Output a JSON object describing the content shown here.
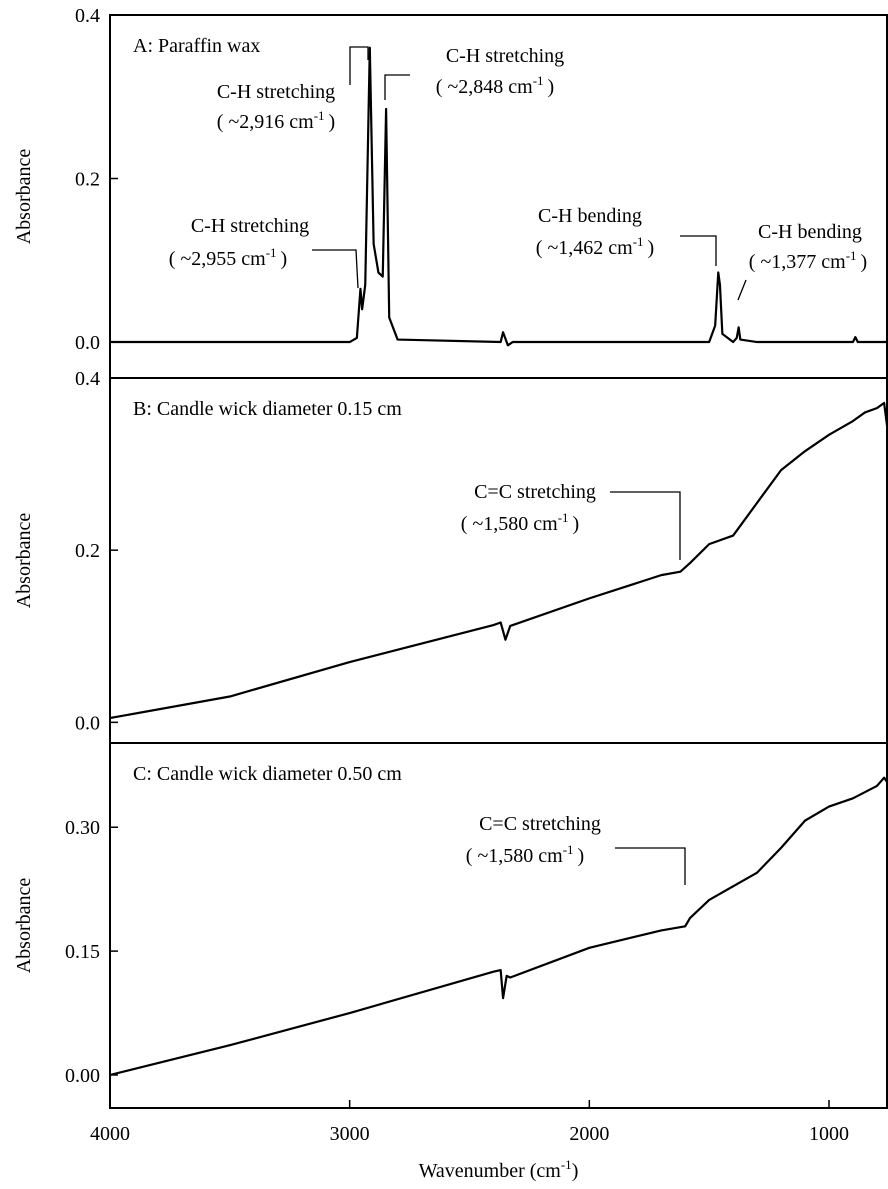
{
  "chart_data": [
    {
      "type": "line",
      "title": "A: Paraffin wax",
      "ylabel": "Absorbance",
      "color": "#000000",
      "xlim": [
        4000,
        758
      ],
      "ylim": [
        -0.044,
        0.4
      ],
      "yticks": [
        {
          "value": 0,
          "label": "0.0"
        },
        0.2,
        0.4
      ],
      "x": [
        4000,
        3000,
        2970,
        2955,
        2948,
        2935,
        2916,
        2900,
        2880,
        2862,
        2848,
        2835,
        2800,
        2370,
        2360,
        2340,
        2320,
        1500,
        1475,
        1462,
        1455,
        1445,
        1400,
        1385,
        1377,
        1370,
        1300,
        900,
        890,
        880,
        758
      ],
      "values": [
        0,
        0,
        0.005,
        0.065,
        0.04,
        0.07,
        0.36,
        0.12,
        0.085,
        0.08,
        0.285,
        0.03,
        0.003,
        0,
        0.012,
        -0.004,
        0,
        0,
        0.02,
        0.085,
        0.07,
        0.01,
        0,
        0.005,
        0.018,
        0.003,
        0,
        0,
        0.006,
        0,
        0
      ],
      "annotations": [
        {
          "text": "C-H stretching",
          "note": "( ~2,955 cm",
          "sup": "-1",
          "end": ")"
        },
        {
          "text": "C-H stretching",
          "note": "( ~2,916 cm",
          "sup": "-1",
          "end": ")"
        },
        {
          "text": "C-H stretching",
          "note": "( ~2,848 cm",
          "sup": "-1",
          "end": ")"
        },
        {
          "text": "C-H bending",
          "note": "( ~1,462 cm",
          "sup": "-1",
          "end": ")"
        },
        {
          "text": "C-H bending",
          "note": "( ~1,377 cm",
          "sup": "-1",
          "end": ")"
        }
      ]
    },
    {
      "type": "line",
      "title": "B: Candle wick diameter  0.15 cm",
      "ylabel": "Absorbance",
      "color": "#000000",
      "xlim": [
        4000,
        758
      ],
      "ylim": [
        -0.024,
        0.4
      ],
      "yticks": [
        {
          "value": 0,
          "label": "0.0"
        },
        0.2,
        0.4
      ],
      "x": [
        4000,
        3500,
        3000,
        2400,
        2370,
        2350,
        2330,
        2000,
        1700,
        1620,
        1580,
        1500,
        1400,
        1200,
        1100,
        1000,
        900,
        850,
        800,
        770,
        758
      ],
      "values": [
        0.005,
        0.03,
        0.07,
        0.113,
        0.116,
        0.096,
        0.112,
        0.144,
        0.171,
        0.175,
        0.185,
        0.207,
        0.217,
        0.293,
        0.315,
        0.334,
        0.35,
        0.36,
        0.365,
        0.371,
        0.345
      ],
      "annotations": [
        {
          "text": "C=C stretching",
          "note": "( ~1,580 cm",
          "sup": "-1",
          "end": ")"
        }
      ]
    },
    {
      "type": "line",
      "title": "C: Candle wick diameter 0.50 cm",
      "ylabel": "Absorbance",
      "color": "#000000",
      "xlabel": "Wavenumber (cm",
      "xlabel_sup": "-1",
      "xlabel_end": ")",
      "xlim": [
        4000,
        758
      ],
      "ylim": [
        -0.04,
        0.402
      ],
      "xticks": [
        4000,
        3000,
        2000,
        1000
      ],
      "yticks": [
        {
          "value": 0,
          "label": "0.00"
        },
        0.15,
        {
          "value": 0.3,
          "label": "0.30"
        }
      ],
      "x": [
        4000,
        3500,
        3000,
        2400,
        2370,
        2360,
        2345,
        2330,
        2000,
        1700,
        1600,
        1580,
        1500,
        1300,
        1200,
        1100,
        1000,
        900,
        800,
        770,
        758
      ],
      "values": [
        0.0,
        0.036,
        0.075,
        0.125,
        0.127,
        0.093,
        0.12,
        0.118,
        0.154,
        0.175,
        0.18,
        0.19,
        0.212,
        0.245,
        0.275,
        0.308,
        0.325,
        0.335,
        0.35,
        0.36,
        0.355
      ],
      "annotations": [
        {
          "text": "C=C stretching",
          "note": "( ~1,580 cm",
          "sup": "-1",
          "end": ")"
        }
      ]
    }
  ]
}
